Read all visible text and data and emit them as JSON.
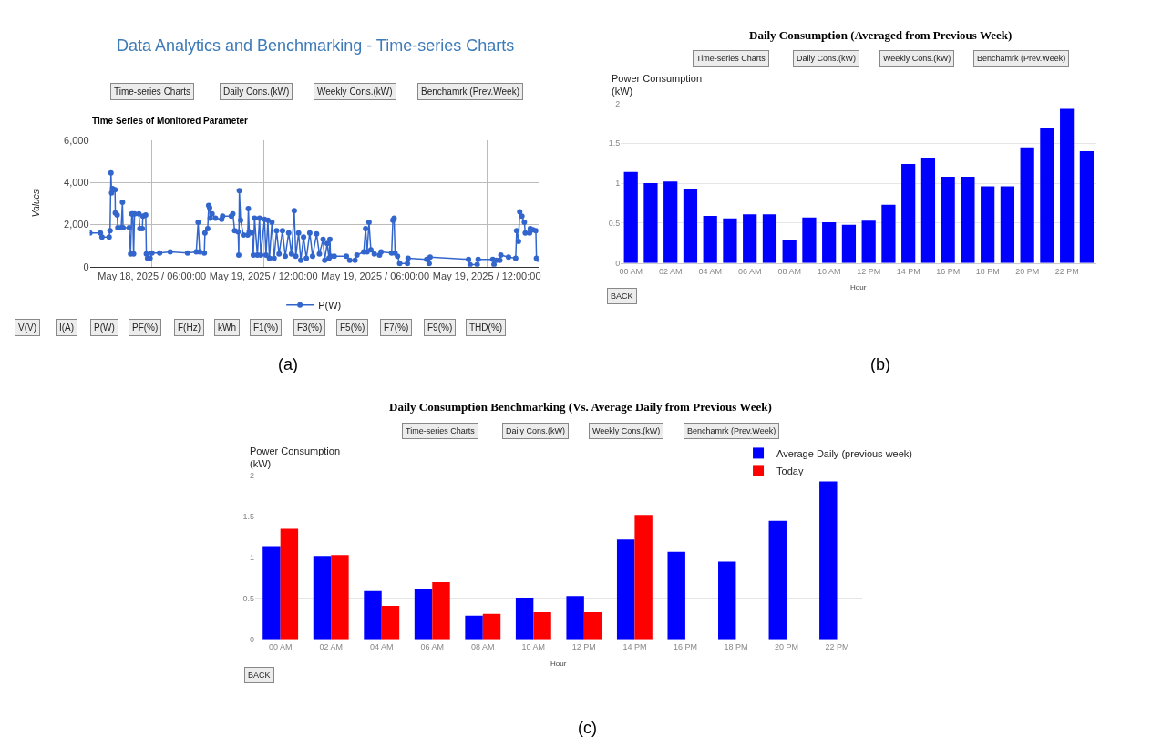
{
  "chart_data": [
    {
      "type": "line",
      "title": "Data Analytics and Benchmarking - Time-series Charts",
      "subtitle": "Time Series of Monitored Parameter",
      "ylabel": "Values",
      "xlim": [
        "2025-05-18T14:40",
        "2025-05-19T14:46"
      ],
      "xticks": [
        {
          "value": "2025-05-18T18:00",
          "label": "May 18, 2025 / 06:00:00"
        },
        {
          "value": "2025-05-19T00:00",
          "label": "May 19, 2025 / 12:00:00"
        },
        {
          "value": "2025-05-19T06:00",
          "label": "May 19, 2025 / 06:00:00"
        },
        {
          "value": "2025-05-19T12:00",
          "label": "May 19, 2025 / 12:00:00"
        }
      ],
      "ylim": [
        0,
        6000
      ],
      "yticks": [
        0,
        {
          "value": 2000,
          "label": "2,000"
        },
        {
          "value": 4000,
          "label": "4,000"
        },
        {
          "value": 6000,
          "label": "6,000"
        }
      ],
      "grid": true,
      "legend": "bottom",
      "marker": "circle",
      "x": [
        "2025-05-18T14:40",
        "2025-05-18T15:14",
        "2025-05-18T15:19",
        "2025-05-18T15:42",
        "2025-05-18T15:45",
        "2025-05-18T15:48",
        "2025-05-18T15:50",
        "2025-05-18T15:53",
        "2025-05-18T16:01",
        "2025-05-18T16:02",
        "2025-05-18T16:08",
        "2025-05-18T16:10",
        "2025-05-18T16:21",
        "2025-05-18T16:25",
        "2025-05-18T16:27",
        "2025-05-18T16:47",
        "2025-05-18T16:51",
        "2025-05-18T16:55",
        "2025-05-18T16:58",
        "2025-05-18T17:01",
        "2025-05-18T17:04",
        "2025-05-18T17:18",
        "2025-05-18T17:21",
        "2025-05-18T17:29",
        "2025-05-18T17:31",
        "2025-05-18T17:40",
        "2025-05-18T17:42",
        "2025-05-18T17:46",
        "2025-05-18T17:54",
        "2025-05-18T18:00",
        "2025-05-18T18:25",
        "2025-05-18T18:59",
        "2025-05-18T19:55",
        "2025-05-18T20:23",
        "2025-05-18T20:29",
        "2025-05-18T20:34",
        "2025-05-18T20:49",
        "2025-05-18T20:51",
        "2025-05-18T21:00",
        "2025-05-18T21:03",
        "2025-05-18T21:06",
        "2025-05-18T21:08",
        "2025-05-18T21:14",
        "2025-05-18T21:25",
        "2025-05-18T21:45",
        "2025-05-18T21:48",
        "2025-05-18T22:16",
        "2025-05-18T22:21",
        "2025-05-18T22:27",
        "2025-05-18T22:38",
        "2025-05-18T22:40",
        "2025-05-18T22:42",
        "2025-05-18T22:46",
        "2025-05-18T22:55",
        "2025-05-18T23:09",
        "2025-05-18T23:11",
        "2025-05-18T23:14",
        "2025-05-18T23:23",
        "2025-05-18T23:27",
        "2025-05-18T23:31",
        "2025-05-18T23:40",
        "2025-05-18T23:47",
        "2025-05-18T23:51",
        "2025-05-19T00:03",
        "2025-05-19T00:08",
        "2025-05-19T00:14",
        "2025-05-19T00:19",
        "2025-05-19T00:27",
        "2025-05-19T00:34",
        "2025-05-19T00:42",
        "2025-05-19T00:50",
        "2025-05-19T01:01",
        "2025-05-19T01:10",
        "2025-05-19T01:21",
        "2025-05-19T01:30",
        "2025-05-19T01:39",
        "2025-05-19T01:44",
        "2025-05-19T01:53",
        "2025-05-19T02:00",
        "2025-05-19T02:09",
        "2025-05-19T02:18",
        "2025-05-19T02:29",
        "2025-05-19T02:38",
        "2025-05-19T02:51",
        "2025-05-19T03:00",
        "2025-05-19T03:12",
        "2025-05-19T03:17",
        "2025-05-19T03:25",
        "2025-05-19T03:31",
        "2025-05-19T03:34",
        "2025-05-19T03:36",
        "2025-05-19T03:48",
        "2025-05-19T04:27",
        "2025-05-19T04:38",
        "2025-05-19T04:55",
        "2025-05-19T05:01",
        "2025-05-19T05:23",
        "2025-05-19T05:29",
        "2025-05-19T05:34",
        "2025-05-19T05:40",
        "2025-05-19T05:46",
        "2025-05-19T05:57",
        "2025-05-19T06:14",
        "2025-05-19T06:19",
        "2025-05-19T06:53",
        "2025-05-19T06:57",
        "2025-05-19T07:01",
        "2025-05-19T07:04",
        "2025-05-19T07:12",
        "2025-05-19T07:19",
        "2025-05-19T07:44",
        "2025-05-19T07:46",
        "2025-05-19T08:46",
        "2025-05-19T08:54",
        "2025-05-19T08:57",
        "2025-05-19T11:01",
        "2025-05-19T11:06",
        "2025-05-19T11:29",
        "2025-05-19T11:32",
        "2025-05-19T12:19",
        "2025-05-19T12:23",
        "2025-05-19T12:31",
        "2025-05-19T12:42",
        "2025-05-19T12:45",
        "2025-05-19T13:10",
        "2025-05-19T13:33",
        "2025-05-19T13:36",
        "2025-05-19T13:42",
        "2025-05-19T13:46",
        "2025-05-19T13:53",
        "2025-05-19T14:01",
        "2025-05-19T14:04",
        "2025-05-19T14:18",
        "2025-05-19T14:20",
        "2025-05-19T14:29",
        "2025-05-19T14:38",
        "2025-05-19T14:40",
        "2025-05-19T14:46"
      ],
      "series": [
        {
          "name": "P(W)",
          "color": "#3366cc",
          "values": [
            1600,
            1600,
            1400,
            1400,
            1700,
            4450,
            3500,
            3700,
            3650,
            2550,
            2450,
            1850,
            1850,
            3050,
            1850,
            1850,
            600,
            2500,
            2500,
            600,
            2500,
            2500,
            1800,
            1800,
            2400,
            2450,
            600,
            400,
            400,
            650,
            650,
            700,
            650,
            700,
            2100,
            700,
            650,
            1600,
            1800,
            2900,
            2800,
            2300,
            2500,
            2300,
            2250,
            2400,
            2400,
            2500,
            1700,
            1650,
            550,
            3600,
            2200,
            1500,
            1500,
            2750,
            1650,
            1600,
            550,
            2300,
            550,
            2300,
            550,
            2250,
            550,
            2200,
            400,
            2100,
            400,
            1700,
            600,
            1700,
            500,
            1600,
            600,
            2650,
            500,
            1600,
            300,
            1400,
            400,
            1600,
            500,
            1550,
            600,
            1300,
            300,
            1100,
            400,
            1300,
            500,
            500,
            500,
            300,
            300,
            550,
            700,
            1800,
            700,
            2100,
            800,
            600,
            550,
            700,
            650,
            2200,
            2300,
            650,
            500,
            150,
            150,
            400,
            350,
            150,
            450,
            350,
            100,
            100,
            350,
            350,
            100,
            300,
            300,
            550,
            450,
            400,
            1700,
            1200,
            2600,
            2400,
            2100,
            1600,
            1600,
            1800,
            1750,
            1700,
            400,
            350
          ]
        }
      ],
      "annotations": [
        "Time-series Charts",
        "Daily Cons.(kW)",
        "Weekly Cons.(kW)",
        "Benchamrk (Prev.Week)",
        "V(V)",
        "I(A)",
        "P(W)",
        "PF(%)",
        "F(Hz)",
        "kWh",
        "F1(%)",
        "F3(%)",
        "F5(%)",
        "F7(%)",
        "F9(%)",
        "THD(%)",
        "(a)"
      ]
    },
    {
      "type": "bar",
      "title": "Daily Consumption (Averaged from Previous Week)",
      "xlabel": "Hour",
      "ylabel": "Power Consumption\n(kW)",
      "categories": [
        "00 AM",
        null,
        "02 AM",
        null,
        "04 AM",
        null,
        "06 AM",
        null,
        "08 AM",
        null,
        "10 AM",
        null,
        "12 PM",
        null,
        "14 PM",
        null,
        "16 PM",
        null,
        "18 PM",
        null,
        "20 PM",
        null,
        "22 PM",
        null
      ],
      "ylim": [
        0,
        2
      ],
      "yticks": [
        0,
        0.5,
        1,
        1.5,
        2
      ],
      "grid": "y",
      "series": [
        {
          "color": "#0000ff",
          "values": [
            1.14,
            1.0,
            1.02,
            0.93,
            0.59,
            0.56,
            0.61,
            0.61,
            0.29,
            0.57,
            0.51,
            0.48,
            0.53,
            0.73,
            1.24,
            1.32,
            1.08,
            1.08,
            0.96,
            0.96,
            1.45,
            1.69,
            1.93,
            1.4
          ]
        }
      ],
      "annotations": [
        "Time-series Charts",
        "Daily Cons.(kW)",
        "Weekly Cons.(kW)",
        "Benchamrk (Prev.Week)",
        "BACK",
        "(b)"
      ]
    },
    {
      "type": "bar",
      "title": "Daily Consumption Benchmarking (Vs. Average Daily from Previous Week)",
      "xlabel": "Hour",
      "ylabel": "Power Consumption\n(kW)",
      "categories": [
        "00 AM",
        "02 AM",
        "04 AM",
        "06 AM",
        "08 AM",
        "10 AM",
        "12 PM",
        "14 PM",
        "16 PM",
        "18 PM",
        "20 PM",
        "22 PM"
      ],
      "ylim": [
        0,
        2
      ],
      "yticks": [
        0,
        0.5,
        1,
        1.5,
        2
      ],
      "grid": "y",
      "legend": "top right",
      "series": [
        {
          "name": "Average Daily (previous week)",
          "color": "#0000ff",
          "values": [
            1.14,
            1.02,
            0.59,
            0.61,
            0.29,
            0.51,
            0.53,
            1.22,
            1.07,
            0.95,
            1.45,
            1.93
          ]
        },
        {
          "name": "Today",
          "color": "#ff0000",
          "values": [
            1.35,
            1.03,
            0.41,
            0.7,
            0.31,
            0.33,
            0.33,
            1.52,
            null,
            null,
            null,
            null
          ]
        }
      ],
      "annotations": [
        "Time-series Charts",
        "Daily Cons.(kW)",
        "Weekly Cons.(kW)",
        "Benchamrk (Prev.Week)",
        "BACK",
        "(c)"
      ]
    }
  ]
}
